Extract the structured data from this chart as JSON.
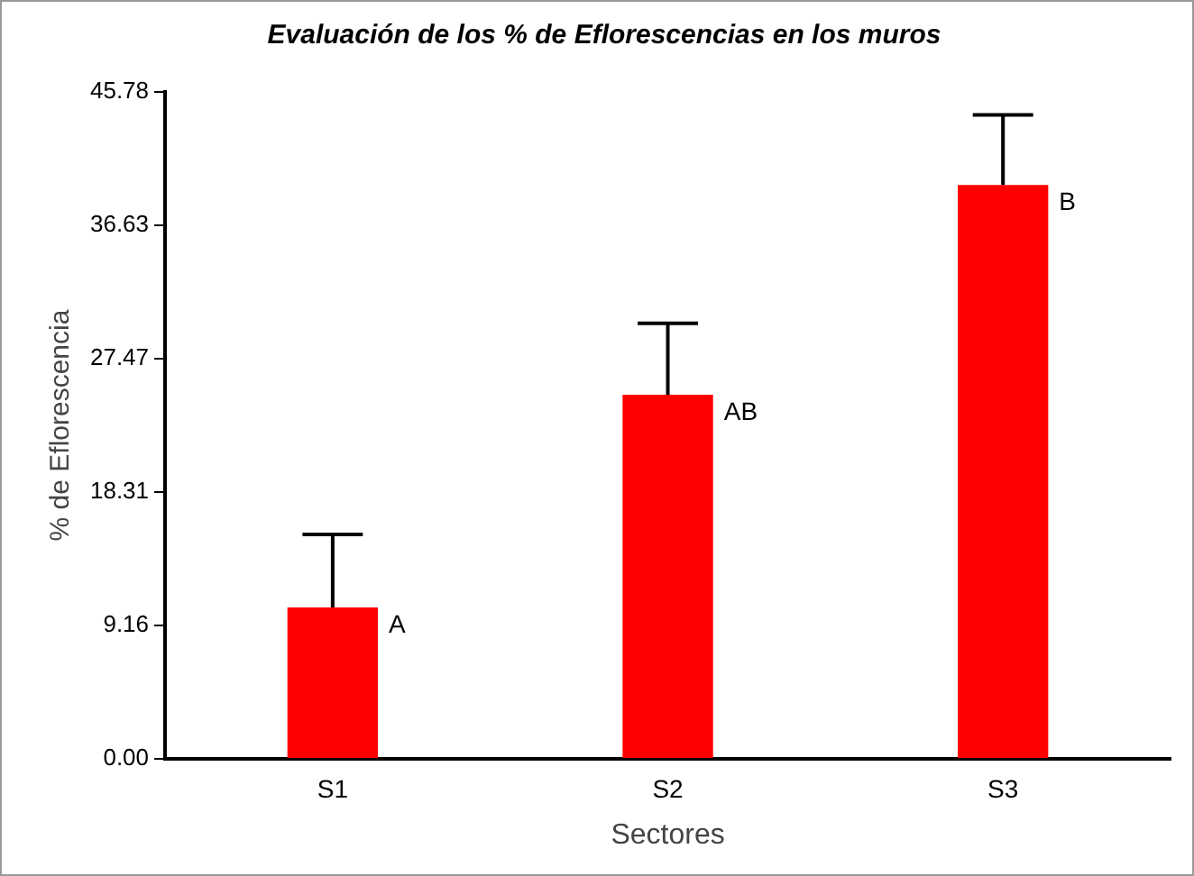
{
  "chart_data": {
    "type": "bar",
    "title": "Evaluación de los % de Eflorescencias en los muros",
    "xlabel": "Sectores",
    "ylabel": "% de Eflorescencia",
    "categories": [
      "S1",
      "S2",
      "S3"
    ],
    "values": [
      10.4,
      25.0,
      39.4
    ],
    "errors": [
      [
        10.4,
        15.4
      ],
      [
        25.0,
        29.9
      ],
      [
        39.4,
        44.2
      ]
    ],
    "color": "#ff0000",
    "ylim": [
      0,
      45.78
    ],
    "yticks": [
      {
        "value": 0,
        "label": "0.00"
      },
      {
        "value": 9.16,
        "label": "9.16"
      },
      {
        "value": 18.31,
        "label": "18.31"
      },
      {
        "value": 27.47,
        "label": "27.47"
      },
      {
        "value": 36.63,
        "label": "36.63"
      },
      {
        "value": 45.78,
        "label": "45.78"
      }
    ],
    "annotations": [
      "A",
      "AB",
      "B"
    ],
    "grid": false,
    "legend": false
  }
}
